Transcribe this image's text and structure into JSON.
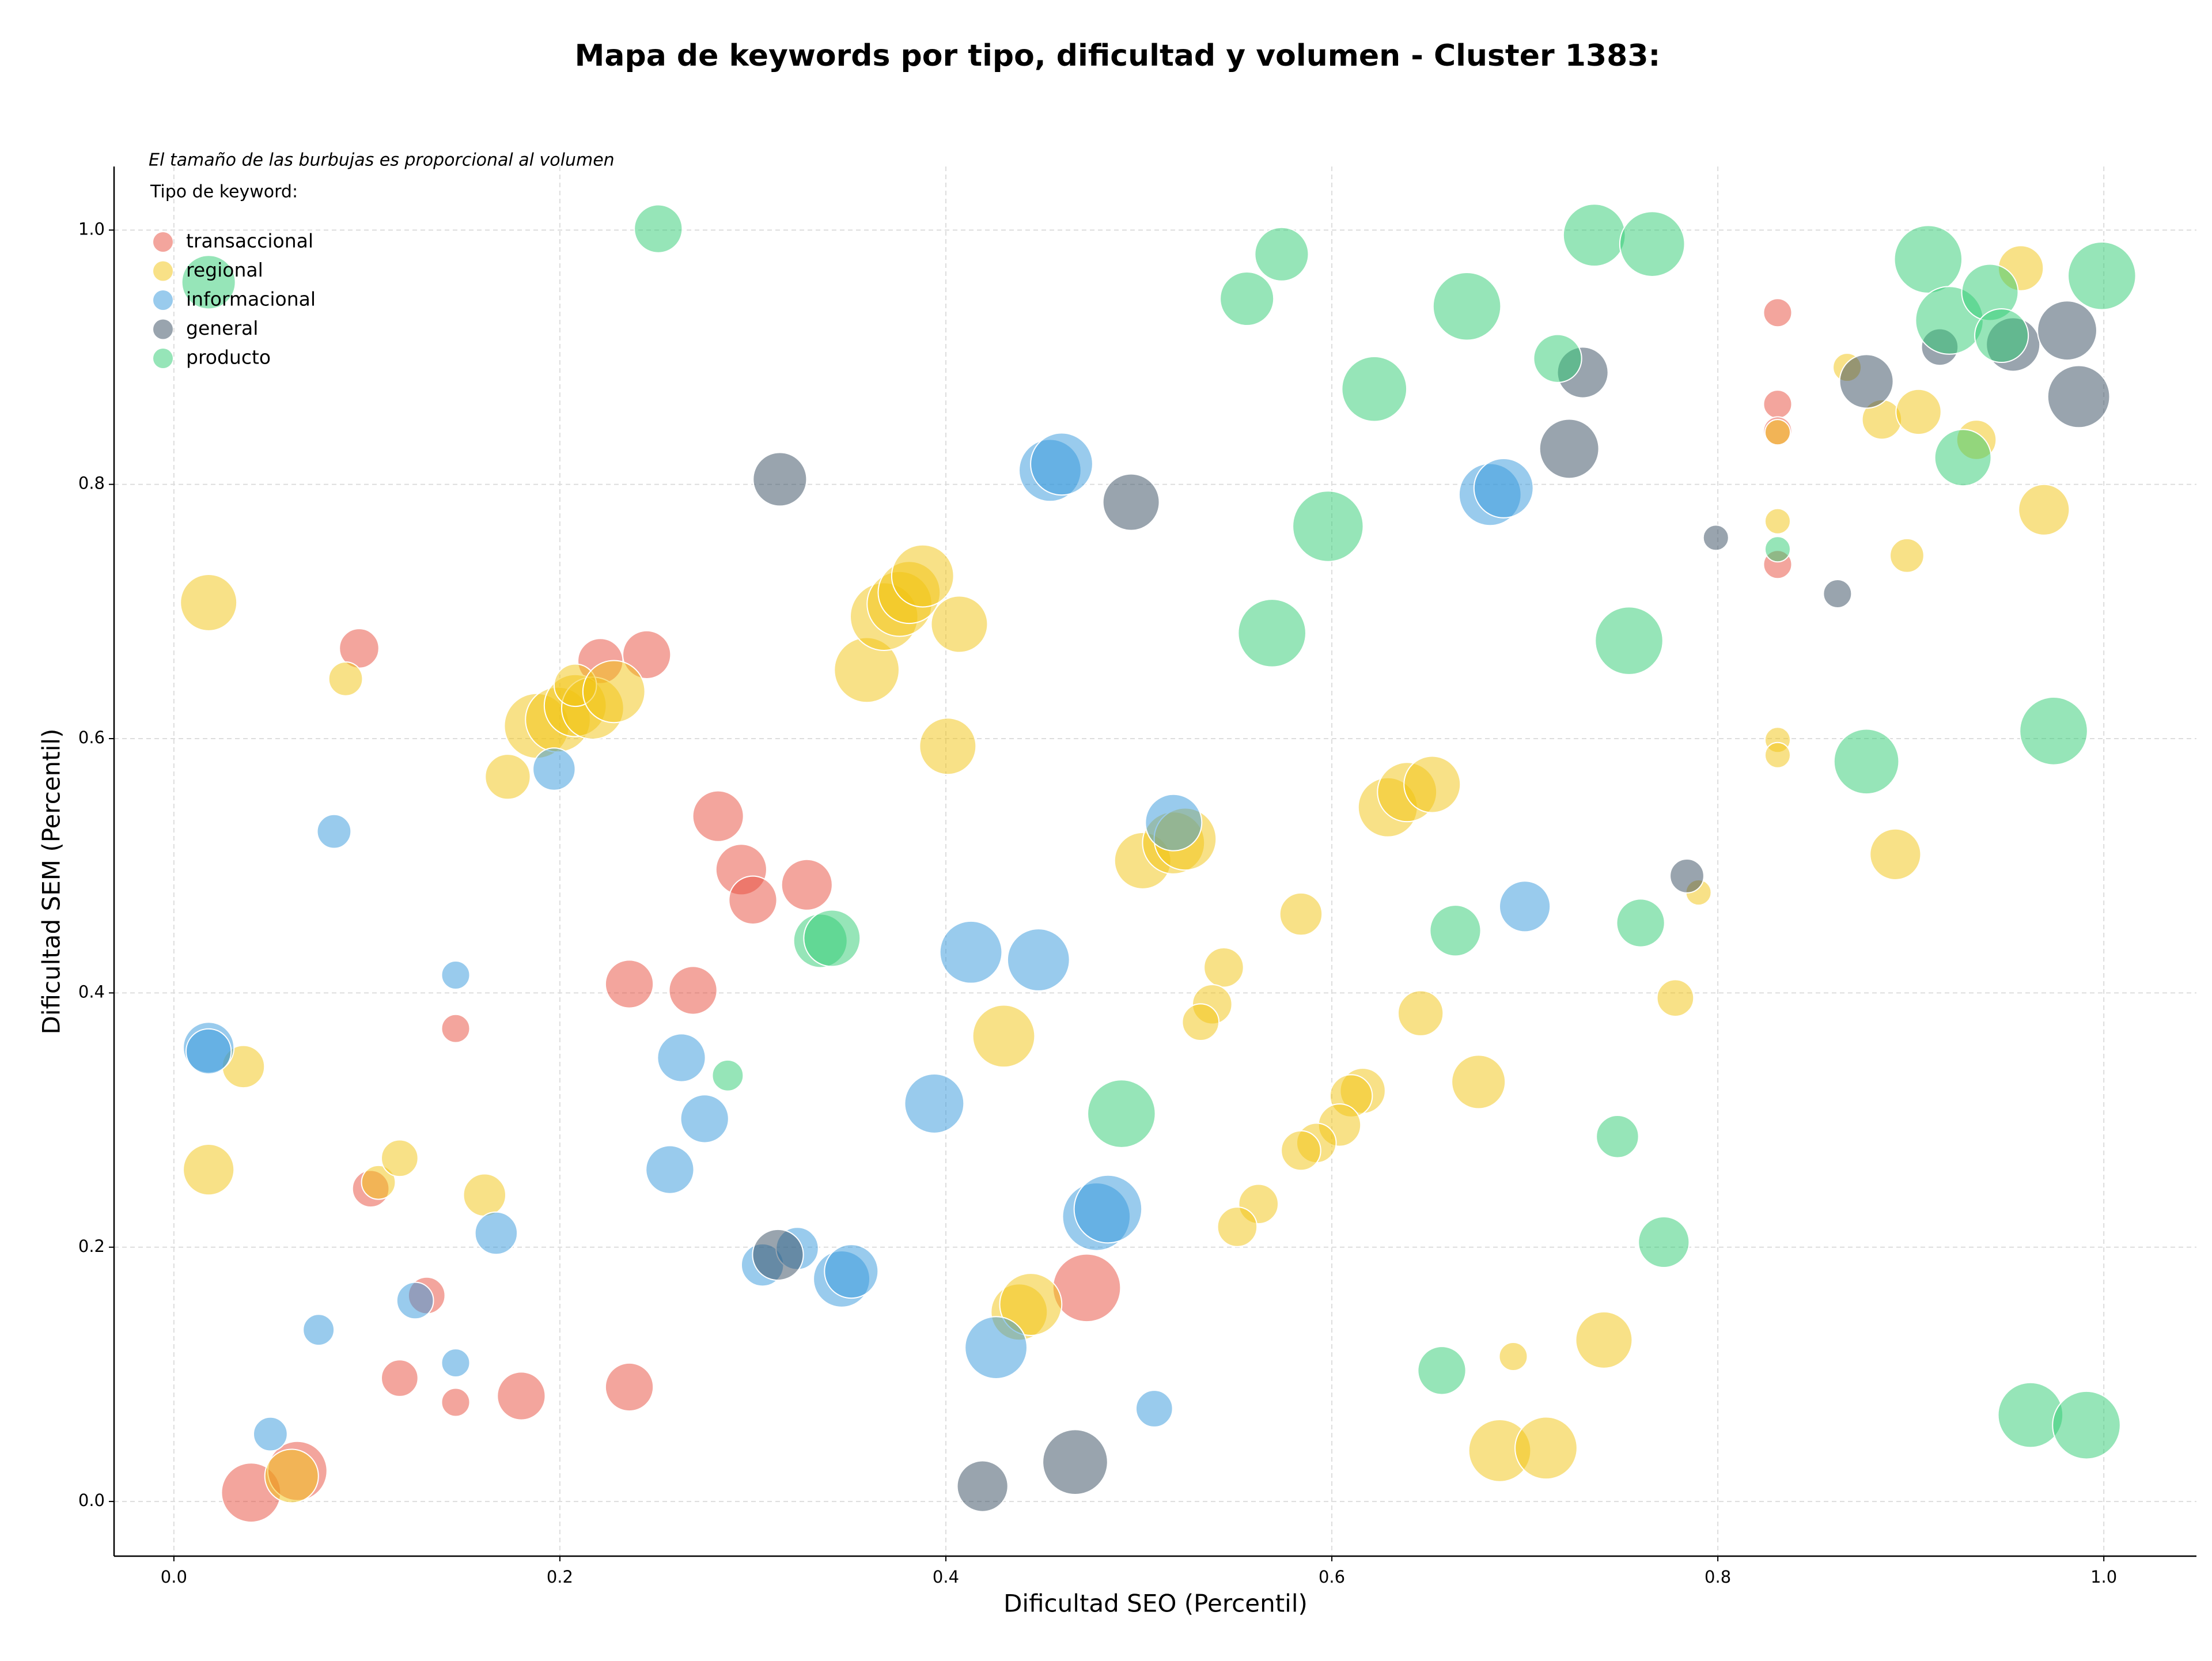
{
  "chart_data": {
    "type": "scatter",
    "title": "Mapa de keywords por tipo, dificultad y volumen - Cluster 1383:",
    "xlabel": "Dificultad SEO (Percentil)",
    "ylabel": "Dificultad SEM (Percentil)",
    "annotation": "El tamaño de las burbujas es proporcional al volumen",
    "legend_title": "Tipo de keyword:",
    "legend": "upper left",
    "grid": true,
    "xlim": [
      -0.031,
      1.048
    ],
    "ylim": [
      -0.043,
      1.05
    ],
    "xticks": [
      {
        "value": 0,
        "label": "0.0"
      },
      0.2,
      0.4,
      0.6,
      0.8,
      {
        "value": 1,
        "label": "1.0"
      }
    ],
    "yticks": [
      {
        "value": 0,
        "label": "0.0"
      },
      0.2,
      0.4,
      0.6,
      0.8,
      {
        "value": 1,
        "label": "1.0"
      }
    ],
    "series": [
      {
        "name": "transaccional",
        "color": "#e74c3c",
        "x": [
          0.096,
          0.221,
          0.245,
          0.282,
          0.294,
          0.3,
          0.328,
          0.236,
          0.269,
          0.146,
          0.102,
          0.131,
          0.117,
          0.146,
          0.18,
          0.236,
          0.04,
          0.064,
          0.473,
          0.831,
          0.831,
          0.831,
          0.831
        ],
        "y": [
          0.671,
          0.661,
          0.666,
          0.539,
          0.497,
          0.473,
          0.485,
          0.407,
          0.402,
          0.372,
          0.246,
          0.162,
          0.097,
          0.078,
          0.083,
          0.09,
          0.007,
          0.024,
          0.168,
          0.935,
          0.863,
          0.842,
          0.737
        ],
        "sizes": [
          14,
          16,
          17,
          18,
          18,
          17,
          18,
          17,
          17,
          10,
          13,
          13,
          13,
          10,
          17,
          17,
          21,
          21,
          24,
          10,
          10,
          10,
          10
        ]
      },
      {
        "name": "regional",
        "color": "#f1c40f",
        "x": [
          0.018,
          0.089,
          0.173,
          0.188,
          0.199,
          0.208,
          0.217,
          0.208,
          0.228,
          0.359,
          0.368,
          0.376,
          0.381,
          0.388,
          0.407,
          0.401,
          0.036,
          0.018,
          0.106,
          0.117,
          0.161,
          0.43,
          0.438,
          0.444,
          0.061,
          0.502,
          0.518,
          0.524,
          0.584,
          0.544,
          0.538,
          0.532,
          0.646,
          0.629,
          0.639,
          0.652,
          0.616,
          0.61,
          0.604,
          0.592,
          0.584,
          0.562,
          0.551,
          0.676,
          0.687,
          0.711,
          0.694,
          0.741,
          0.778,
          0.79,
          0.831,
          0.831,
          0.831,
          0.831,
          0.867,
          0.885,
          0.904,
          0.898,
          0.892,
          0.934,
          0.957,
          0.969
        ],
        "y": [
          0.707,
          0.647,
          0.57,
          0.61,
          0.615,
          0.626,
          0.624,
          0.642,
          0.637,
          0.654,
          0.696,
          0.706,
          0.715,
          0.728,
          0.69,
          0.594,
          0.342,
          0.261,
          0.251,
          0.27,
          0.241,
          0.366,
          0.149,
          0.155,
          0.02,
          0.504,
          0.518,
          0.521,
          0.462,
          0.42,
          0.391,
          0.377,
          0.384,
          0.546,
          0.558,
          0.564,
          0.323,
          0.319,
          0.296,
          0.282,
          0.276,
          0.234,
          0.216,
          0.33,
          0.04,
          0.042,
          0.114,
          0.127,
          0.396,
          0.479,
          0.599,
          0.587,
          0.771,
          0.841,
          0.892,
          0.851,
          0.857,
          0.744,
          0.509,
          0.835,
          0.97,
          0.78
        ],
        "sizes": [
          20,
          12,
          16,
          23,
          23,
          22,
          22,
          15,
          22,
          23,
          24,
          23,
          22,
          22,
          20,
          20,
          15,
          18,
          12,
          13,
          15,
          22,
          20,
          22,
          19,
          20,
          22,
          22,
          15,
          14,
          14,
          13,
          16,
          21,
          21,
          20,
          16,
          15,
          15,
          14,
          14,
          14,
          14,
          19,
          22,
          22,
          10,
          20,
          13,
          9,
          9,
          9,
          9,
          9,
          10,
          14,
          16,
          12,
          18,
          14,
          16,
          18
        ]
      },
      {
        "name": "informacional",
        "color": "#3498db",
        "x": [
          0.083,
          0.197,
          0.146,
          0.018,
          0.018,
          0.167,
          0.125,
          0.146,
          0.075,
          0.05,
          0.263,
          0.275,
          0.257,
          0.305,
          0.323,
          0.346,
          0.351,
          0.394,
          0.413,
          0.448,
          0.426,
          0.478,
          0.484,
          0.508,
          0.518,
          0.454,
          0.46,
          0.682,
          0.689,
          0.7
        ],
        "y": [
          0.527,
          0.576,
          0.414,
          0.357,
          0.354,
          0.211,
          0.158,
          0.109,
          0.135,
          0.053,
          0.349,
          0.301,
          0.261,
          0.186,
          0.199,
          0.175,
          0.181,
          0.313,
          0.432,
          0.426,
          0.121,
          0.224,
          0.23,
          0.073,
          0.534,
          0.811,
          0.816,
          0.792,
          0.797,
          0.468
        ],
        "sizes": [
          12,
          15,
          10,
          18,
          16,
          15,
          13,
          10,
          11,
          12,
          17,
          17,
          17,
          15,
          15,
          20,
          19,
          21,
          22,
          22,
          22,
          24,
          24,
          13,
          20,
          22,
          22,
          22,
          21,
          18
        ]
      },
      {
        "name": "general",
        "color": "#34495e",
        "x": [
          0.314,
          0.496,
          0.313,
          0.419,
          0.467,
          0.73,
          0.723,
          0.799,
          0.784,
          0.862,
          0.877,
          0.915,
          0.953,
          0.981,
          0.987
        ],
        "y": [
          0.804,
          0.786,
          0.194,
          0.012,
          0.031,
          0.888,
          0.828,
          0.758,
          0.492,
          0.714,
          0.881,
          0.908,
          0.91,
          0.921,
          0.869
        ],
        "sizes": [
          19,
          20,
          18,
          18,
          23,
          18,
          21,
          9,
          12,
          10,
          19,
          13,
          19,
          21,
          22
        ]
      },
      {
        "name": "producto",
        "color": "#2ecc71",
        "x": [
          0.018,
          0.251,
          0.574,
          0.556,
          0.736,
          0.766,
          0.67,
          0.622,
          0.717,
          0.598,
          0.569,
          0.754,
          0.909,
          0.92,
          0.941,
          0.947,
          0.999,
          0.927,
          0.831,
          0.877,
          0.974,
          0.335,
          0.341,
          0.287,
          0.491,
          0.664,
          0.76,
          0.748,
          0.772,
          0.657,
          0.962,
          0.991
        ],
        "y": [
          0.959,
          1.001,
          0.981,
          0.946,
          0.996,
          0.989,
          0.94,
          0.875,
          0.899,
          0.767,
          0.683,
          0.677,
          0.977,
          0.929,
          0.951,
          0.917,
          0.964,
          0.821,
          0.749,
          0.582,
          0.606,
          0.441,
          0.443,
          0.335,
          0.305,
          0.449,
          0.455,
          0.287,
          0.204,
          0.103,
          0.068,
          0.06
        ],
        "sizes": [
          19,
          17,
          19,
          19,
          22,
          23,
          24,
          23,
          17,
          25,
          24,
          24,
          24,
          24,
          20,
          19,
          24,
          20,
          9,
          23,
          24,
          19,
          20,
          11,
          24,
          18,
          17,
          15,
          18,
          17,
          23,
          24
        ]
      }
    ]
  }
}
